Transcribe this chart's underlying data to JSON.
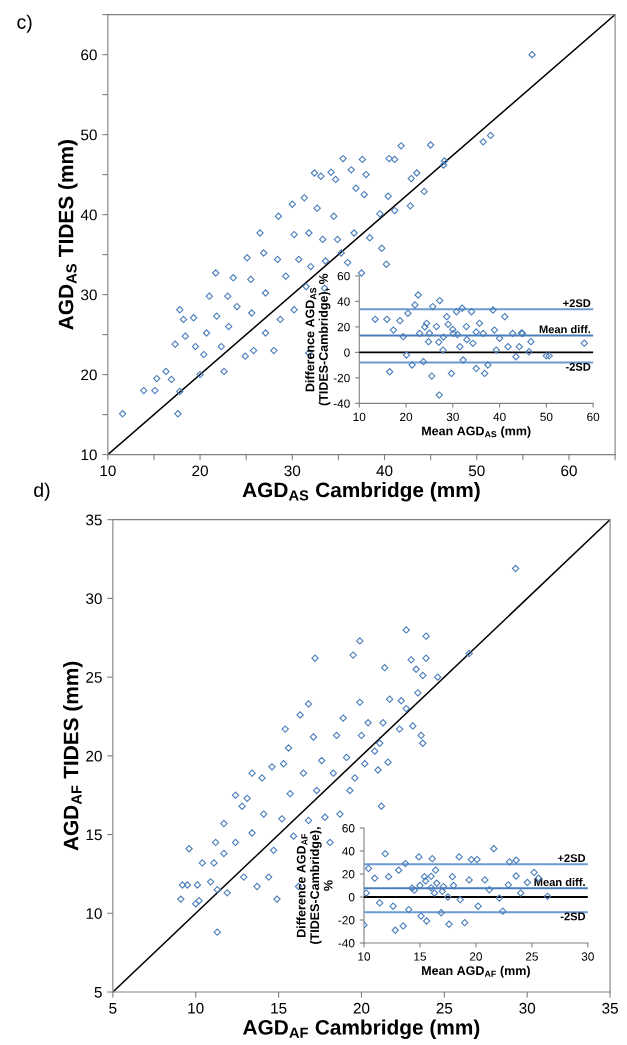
{
  "chart_data": [
    {
      "type": "scatter",
      "title": "c)",
      "xlabel": "AGD$_{AS}$ Cambridge (mm)",
      "ylabel": "AGD$_{AS}$ TIDES (mm)",
      "xlim": [
        10,
        65
      ],
      "ylim": [
        10,
        65
      ],
      "xticks": [
        10,
        {
          "value": 15,
          "label": null
        },
        20,
        {
          "value": 25,
          "label": null
        },
        30,
        {
          "value": 35,
          "label": null
        },
        40,
        {
          "value": 45,
          "label": null
        },
        50,
        {
          "value": 55,
          "label": null
        },
        60,
        {
          "value": 65,
          "label": null
        }
      ],
      "yticks": [
        10,
        {
          "value": 15,
          "label": null
        },
        20,
        {
          "value": 25,
          "label": null
        },
        30,
        {
          "value": 35,
          "label": null
        },
        40,
        {
          "value": 45,
          "label": null
        },
        50,
        {
          "value": 55,
          "label": null
        },
        60,
        {
          "value": 65,
          "label": null
        }
      ],
      "series": [
        {
          "marker": "diamond",
          "color": "#4a7ebb",
          "x": [
            11.6,
            13.9,
            15.1,
            15.3,
            16.3,
            16.9,
            17.3,
            17.8,
            17.6,
            17.8,
            18.2,
            18.4,
            19.3,
            19.5,
            20.0,
            20.4,
            21.0,
            20.7,
            21.7,
            21.8,
            22.3,
            22.6,
            23.0,
            23.1,
            23.6,
            24.0,
            24.9,
            25.1,
            25.5,
            25.6,
            25.8,
            26.5,
            26.9,
            27.1,
            27.1,
            28.0,
            28.5,
            28.4,
            28.7,
            29.3,
            30.0,
            30.2,
            30.2,
            30.7,
            31.3,
            31.5,
            31.8,
            32.0,
            31.8,
            32.4,
            32.7,
            33.1,
            33.3,
            33.6,
            33.5,
            34.2,
            34.5,
            34.7,
            34.9,
            35.3,
            35.5,
            36.0,
            36.4,
            36.7,
            36.9,
            37.5,
            37.6,
            38.0,
            37.8,
            38.4,
            39.5,
            39.7,
            40.2,
            40.4,
            40.5,
            41.1,
            41.1,
            41.8,
            42.8,
            42.9,
            43.5,
            44.3,
            45.0,
            46.4,
            46.5,
            50.7,
            51.5,
            56.0
          ],
          "values": [
            15.1,
            18.0,
            18.0,
            19.5,
            20.4,
            19.4,
            23.8,
            28.1,
            15.1,
            17.9,
            26.9,
            24.8,
            27.1,
            23.5,
            20.0,
            22.5,
            29.8,
            25.2,
            32.7,
            27.3,
            23.5,
            20.4,
            29.8,
            26.0,
            32.1,
            28.5,
            22.3,
            34.6,
            31.9,
            27.7,
            23.0,
            37.7,
            35.2,
            30.2,
            25.2,
            23.0,
            39.8,
            34.4,
            26.9,
            32.3,
            41.3,
            37.5,
            28.1,
            34.4,
            42.1,
            31.0,
            37.7,
            33.5,
            22.7,
            45.2,
            40.8,
            44.8,
            36.9,
            34.2,
            30.8,
            45.3,
            39.8,
            44.4,
            36.9,
            35.2,
            47.0,
            34.0,
            45.6,
            37.7,
            43.3,
            32.7,
            46.9,
            45.0,
            42.5,
            37.1,
            40.1,
            35.8,
            33.8,
            42.3,
            47.0,
            46.9,
            40.5,
            48.6,
            41.1,
            44.5,
            45.2,
            42.9,
            48.7,
            46.2,
            46.7,
            49.1,
            49.9,
            60.0
          ]
        },
        {
          "type": "line",
          "color": "#000000",
          "x": [
            10,
            65
          ],
          "values": [
            10,
            65
          ]
        }
      ]
    },
    {
      "type": "scatter",
      "xlabel": "Mean AGD$_{AS}$ (mm)",
      "ylabel": "Difference AGD$_{AS}$\n(TIDES-Cambridge), %",
      "xlim": [
        10,
        60
      ],
      "ylim": [
        -40,
        60
      ],
      "xticks": [
        10,
        20,
        30,
        40,
        50,
        60
      ],
      "yticks": [
        -40,
        -20,
        0,
        20,
        40,
        60
      ],
      "series": [
        {
          "marker": "diamond",
          "color": "#4a7ebb",
          "x": [
            13.4,
            15.9,
            16.5,
            17.3,
            18.7,
            19.4,
            20.1,
            20.4,
            21.3,
            21.9,
            22.6,
            22.9,
            23.7,
            24.4,
            24.8,
            25.5,
            25.7,
            26.5,
            27.1,
            27.2,
            27.9,
            28.7,
            29.7,
            30.1,
            30.8,
            31.5,
            32.2,
            32.0,
            32.9,
            34.0,
            34.3,
            35.0,
            35.7,
            36.5,
            36.8,
            37.5,
            38.6,
            38.9,
            39.3,
            40.0,
            41.1,
            41.8,
            42.8,
            43.5,
            44.2,
            44.9,
            46.7,
            46.3,
            50.0,
            50.6,
            58.1,
            44.7,
            25,
            28,
            30,
            33,
            24,
            31,
            35,
            27,
            29
          ],
          "values": [
            25.9,
            25.9,
            -15.2,
            17.5,
            24.9,
            12.3,
            -2.1,
            30.6,
            -9.9,
            37.2,
            45.0,
            14.9,
            -7.3,
            22.8,
            8.4,
            -18.6,
            35.9,
            20.2,
            -33.5,
            40.6,
            1.8,
            28.0,
            -16.5,
            14.9,
            31.9,
            4.5,
            -6.0,
            34.6,
            20.2,
            31.9,
            7.1,
            -12.6,
            22.8,
            14.9,
            -16.5,
            -9.9,
            33.2,
            17.5,
            1.8,
            11.0,
            28.0,
            4.5,
            14.9,
            -3.4,
            4.5,
            14.9,
            8.4,
            0.5,
            -2.7,
            -2.7,
            7.2,
            15.2,
            15,
            12,
            18,
            10,
            20,
            14,
            16,
            8,
            22
          ]
        }
      ],
      "ref_lines": [
        {
          "axis": "y",
          "value": 33.8,
          "label": "+2SD",
          "color": "#6d9ad0"
        },
        {
          "axis": "y",
          "value": 13.3,
          "label": "Mean diff.",
          "color": "#4a7ebb"
        },
        {
          "axis": "y",
          "value": 0,
          "color": "#000000"
        },
        {
          "axis": "y",
          "value": -8.0,
          "label": "-2SD",
          "color": "#6d9ad0"
        }
      ]
    },
    {
      "type": "scatter",
      "title": "d)",
      "xlabel": "AGD$_{AF}$ Cambridge (mm)",
      "ylabel": "AGD$_{AF}$ TIDES (mm)",
      "xlim": [
        5,
        35
      ],
      "ylim": [
        5,
        35
      ],
      "xticks": [
        5,
        10,
        15,
        20,
        25,
        30,
        35
      ],
      "yticks": [
        5,
        10,
        15,
        20,
        25,
        30,
        35
      ],
      "series": [
        {
          "marker": "diamond",
          "color": "#4a7ebb",
          "x": [
            9.1,
            9.2,
            9.5,
            9.6,
            10.0,
            10.1,
            10.2,
            10.4,
            10.9,
            11.1,
            11.2,
            11.3,
            11.3,
            11.7,
            11.7,
            11.9,
            12.4,
            12.4,
            12.8,
            12.9,
            13.1,
            13.4,
            13.4,
            13.7,
            14.0,
            14.1,
            14.4,
            14.6,
            14.7,
            14.9,
            15.2,
            15.3,
            15.4,
            15.6,
            15.7,
            15.9,
            16.2,
            16.3,
            16.5,
            16.8,
            16.8,
            17.2,
            17.1,
            17.3,
            17.6,
            17.8,
            18.1,
            18.3,
            18.5,
            18.7,
            18.9,
            19.1,
            19.3,
            19.5,
            19.6,
            19.9,
            19.9,
            20.0,
            20.2,
            20.4,
            20.8,
            21.0,
            21.1,
            21.2,
            21.3,
            21.4,
            21.6,
            21.7,
            22.3,
            22.4,
            22.7,
            22.7,
            23.0,
            23.1,
            23.3,
            23.4,
            23.6,
            23.7,
            23.7,
            23.9,
            23.9,
            24.6,
            26.5,
            29.3
          ],
          "values": [
            10.9,
            11.8,
            11.8,
            14.1,
            10.6,
            11.8,
            10.8,
            13.2,
            12.0,
            13.2,
            14.5,
            8.8,
            11.5,
            15.7,
            13.8,
            11.3,
            17.5,
            14.5,
            16.8,
            12.3,
            17.3,
            18.9,
            15.1,
            11.7,
            18.6,
            16.3,
            12.3,
            19.3,
            14.0,
            10.9,
            16.0,
            19.5,
            21.7,
            20.5,
            17.6,
            14.9,
            11.7,
            22.6,
            18.9,
            23.3,
            15.9,
            26.2,
            21.2,
            17.8,
            19.7,
            16.1,
            14.5,
            18.9,
            21.3,
            16.3,
            22.4,
            19.9,
            17.8,
            26.4,
            18.6,
            27.3,
            23.4,
            21.3,
            19.5,
            22.1,
            20.3,
            19.1,
            20.8,
            16.8,
            22.1,
            25.6,
            19.6,
            23.6,
            21.7,
            23.5,
            28.0,
            23.0,
            26.1,
            21.9,
            25.5,
            24.0,
            21.3,
            20.8,
            25.1,
            27.6,
            26.2,
            25.0,
            26.5,
            31.9
          ]
        },
        {
          "type": "line",
          "color": "#000000",
          "x": [
            5,
            35
          ],
          "values": [
            5,
            35
          ]
        }
      ]
    },
    {
      "type": "scatter",
      "xlabel": "Mean AGD$_{AF}$ (mm)",
      "ylabel": "Difference AGD$_{AF}$\n(TIDES-Cambridge),\n%",
      "xlim": [
        10,
        30
      ],
      "ylim": [
        -40,
        60
      ],
      "xticks": [
        10,
        15,
        20,
        25,
        30
      ],
      "yticks": [
        -40,
        -20,
        0,
        20,
        40,
        60
      ],
      "series": [
        {
          "marker": "diamond",
          "color": "#4a7ebb",
          "x": [
            10.0,
            10.2,
            10.4,
            10.96,
            11.4,
            11.9,
            12.2,
            12.6,
            12.8,
            13.1,
            13.5,
            13.7,
            14.0,
            14.3,
            14.9,
            15.1,
            15.4,
            15.6,
            16.1,
            16.3,
            16.4,
            16.9,
            17.1,
            17.6,
            17.9,
            18.5,
            18.6,
            19.0,
            19.4,
            19.6,
            20.1,
            20.2,
            20.8,
            21.2,
            21.6,
            22.1,
            22.4,
            22.9,
            23.0,
            23.6,
            23.6,
            24.0,
            24.6,
            25.2,
            25.6,
            26.4,
            15,
            16,
            15.5,
            17,
            16.5,
            14.5,
            18,
            16,
            17.5
          ],
          "values": [
            -24.3,
            3.4,
            24.9,
            16.3,
            -5.1,
            37.7,
            17.7,
            -8.0,
            -28.9,
            23.4,
            -25.1,
            29.1,
            -10.9,
            7.7,
            34.9,
            -16.6,
            17.7,
            -20.9,
            33.4,
            3.4,
            23.4,
            -13.7,
            9.1,
            -23.7,
            17.7,
            34.9,
            -2.3,
            -22.3,
            14.9,
            32.6,
            32.6,
            -8.0,
            14.9,
            6.3,
            42.0,
            -0.9,
            -12.3,
            10.6,
            30.6,
            32.0,
            18.3,
            3.4,
            12.6,
            21.4,
            16.3,
            0.6,
            10,
            8,
            14,
            5,
            12,
            6,
            10,
            18,
            0
          ]
        }
      ],
      "ref_lines": [
        {
          "axis": "y",
          "value": 28.5,
          "label": "+2SD",
          "color": "#6d9ad0"
        },
        {
          "axis": "y",
          "value": 7.6,
          "label": "Mean diff.",
          "color": "#4a7ebb"
        },
        {
          "axis": "y",
          "value": 0,
          "color": "#000000"
        },
        {
          "axis": "y",
          "value": -13.2,
          "label": "-2SD",
          "color": "#6d9ad0"
        }
      ]
    }
  ]
}
